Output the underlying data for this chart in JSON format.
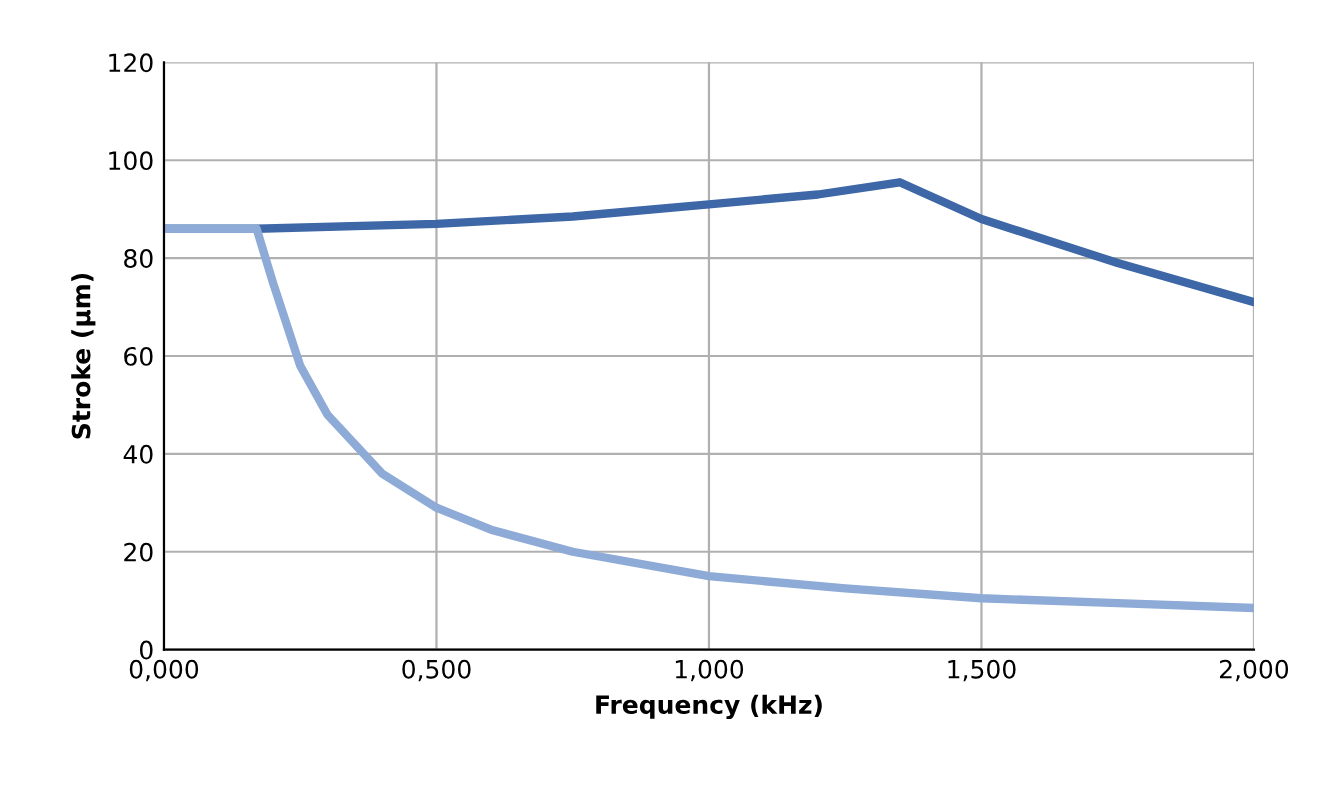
{
  "chart_data": {
    "type": "line",
    "xlabel": "Frequency (kHz)",
    "ylabel": "Stroke (µm)",
    "xlim": [
      0,
      2
    ],
    "ylim": [
      0,
      120
    ],
    "xticks": [
      {
        "value": 0,
        "label": "0,000"
      },
      {
        "value": 0.5,
        "label": "0,500"
      },
      {
        "value": 1,
        "label": "1,000"
      },
      {
        "value": 1.5,
        "label": "1,500"
      },
      {
        "value": 2,
        "label": "2,000"
      }
    ],
    "yticks": [
      0,
      20,
      40,
      60,
      80,
      100,
      120
    ],
    "grid": true,
    "marker": "none",
    "line_style": "solid",
    "series": [
      {
        "color": "#3d67a6",
        "x": [
          0,
          0.17,
          0.5,
          0.75,
          1.0,
          1.2,
          1.35,
          1.5,
          1.75,
          2.0
        ],
        "values": [
          86,
          86,
          87,
          88.5,
          91,
          93,
          95.5,
          88,
          79,
          71
        ]
      },
      {
        "color": "#8eaad6",
        "x": [
          0,
          0.17,
          0.2,
          0.25,
          0.3,
          0.4,
          0.5,
          0.6,
          0.75,
          1.0,
          1.25,
          1.5,
          1.75,
          2.0
        ],
        "values": [
          86,
          86,
          75,
          58,
          48,
          36,
          29,
          24.5,
          20,
          15,
          12.5,
          10.5,
          9.5,
          8.5
        ]
      }
    ]
  }
}
